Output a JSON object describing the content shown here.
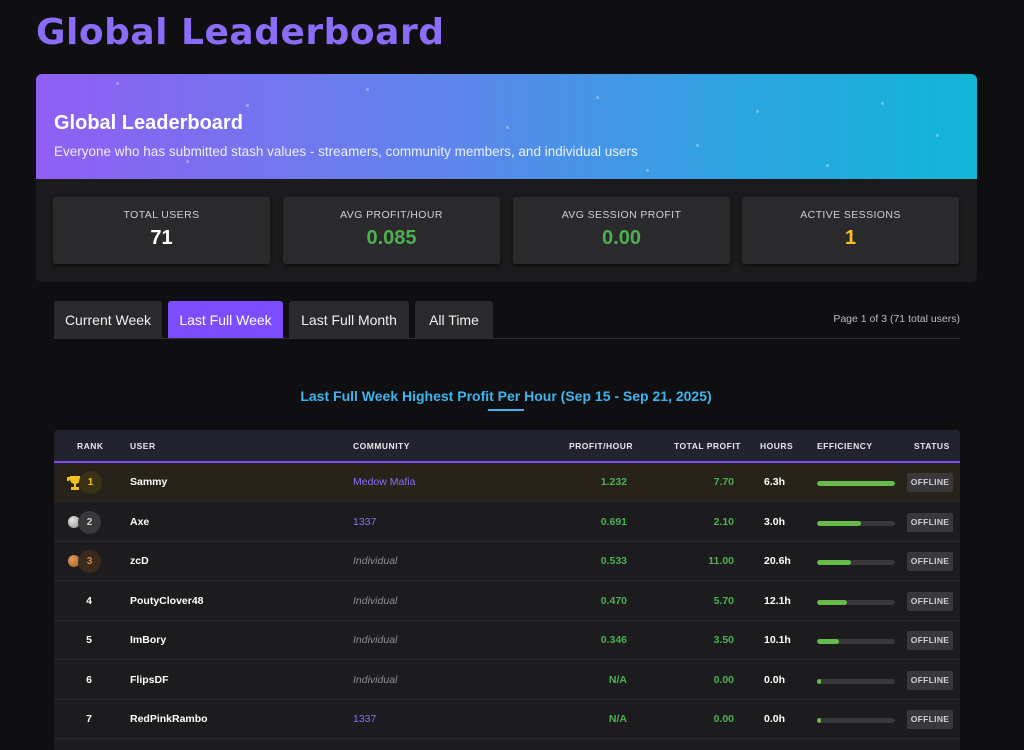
{
  "page_title": "Global Leaderboard",
  "hero": {
    "title": "Global Leaderboard",
    "subtitle": "Everyone who has submitted stash values - streamers, community members, and individual users"
  },
  "stats": [
    {
      "label": "TOTAL USERS",
      "value": "71",
      "color": "#ffffff"
    },
    {
      "label": "AVG PROFIT/HOUR",
      "value": "0.085",
      "color": "#4caf50"
    },
    {
      "label": "AVG SESSION PROFIT",
      "value": "0.00",
      "color": "#4caf50"
    },
    {
      "label": "ACTIVE SESSIONS",
      "value": "1",
      "color": "#fbbf24"
    }
  ],
  "tabs": [
    {
      "label": "Current Week",
      "active": false
    },
    {
      "label": "Last Full Week",
      "active": true
    },
    {
      "label": "Last Full Month",
      "active": false
    },
    {
      "label": "All Time",
      "active": false
    }
  ],
  "page_info": "Page 1 of 3 (71 total users)",
  "section_title": "Last Full Week Highest Profit Per Hour (Sep 15 - Sep 21, 2025)",
  "table": {
    "headers": [
      "RANK",
      "USER",
      "COMMUNITY",
      "PROFIT/HOUR",
      "TOTAL PROFIT",
      "HOURS",
      "EFFICIENCY",
      "STATUS"
    ],
    "rows": [
      {
        "rank": "1",
        "medal": "trophy-icon",
        "user": "Sammy",
        "community": "Medow Mafia",
        "community_type": "link",
        "profit_hour": "1.232",
        "total_profit": "7.70",
        "hours": "6.3h",
        "efficiency": 1.0,
        "status": "OFFLINE"
      },
      {
        "rank": "2",
        "medal": "silver-medal-icon",
        "user": "Axe",
        "community": "1337",
        "community_type": "link",
        "profit_hour": "0.691",
        "total_profit": "2.10",
        "hours": "3.0h",
        "efficiency": 0.56,
        "status": "OFFLINE"
      },
      {
        "rank": "3",
        "medal": "bronze-medal-icon",
        "user": "zcD",
        "community": "Individual",
        "community_type": "individual",
        "profit_hour": "0.533",
        "total_profit": "11.00",
        "hours": "20.6h",
        "efficiency": 0.43,
        "status": "OFFLINE"
      },
      {
        "rank": "4",
        "medal": "",
        "user": "PoutyClover48",
        "community": "Individual",
        "community_type": "individual",
        "profit_hour": "0.470",
        "total_profit": "5.70",
        "hours": "12.1h",
        "efficiency": 0.38,
        "status": "OFFLINE"
      },
      {
        "rank": "5",
        "medal": "",
        "user": "ImBory",
        "community": "Individual",
        "community_type": "individual",
        "profit_hour": "0.346",
        "total_profit": "3.50",
        "hours": "10.1h",
        "efficiency": 0.28,
        "status": "OFFLINE"
      },
      {
        "rank": "6",
        "medal": "",
        "user": "FlipsDF",
        "community": "Individual",
        "community_type": "individual",
        "profit_hour": "N/A",
        "total_profit": "0.00",
        "hours": "0.0h",
        "efficiency": 0.05,
        "status": "OFFLINE"
      },
      {
        "rank": "7",
        "medal": "",
        "user": "RedPinkRambo",
        "community": "1337",
        "community_type": "link",
        "profit_hour": "N/A",
        "total_profit": "0.00",
        "hours": "0.0h",
        "efficiency": 0.05,
        "status": "OFFLINE"
      }
    ]
  }
}
